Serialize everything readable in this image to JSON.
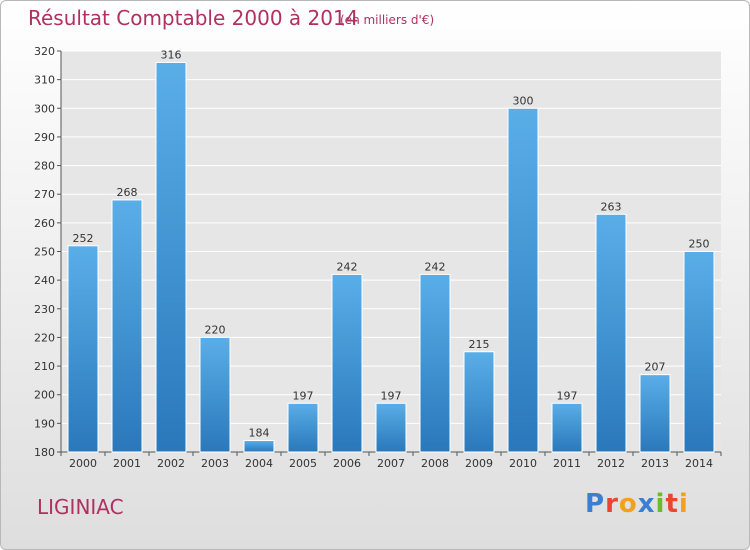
{
  "header": {
    "title": "Résultat Comptable 2000 à 2014",
    "subtitle": "(en milliers d'€)"
  },
  "footer": {
    "commune": "LIGINIAC",
    "logo_text": "Proxiti"
  },
  "colors": {
    "bar_top": "#5aaee8",
    "bar_bottom": "#2a78bb",
    "title": "#b03060",
    "grid": "#ffffff",
    "plot_bg": "#e6e6e6"
  },
  "chart_data": {
    "type": "bar",
    "categories": [
      "2000",
      "2001",
      "2002",
      "2003",
      "2004",
      "2005",
      "2006",
      "2007",
      "2008",
      "2009",
      "2010",
      "2011",
      "2012",
      "2013",
      "2014"
    ],
    "values": [
      252,
      268,
      316,
      220,
      184,
      197,
      242,
      197,
      242,
      215,
      300,
      197,
      263,
      207,
      250
    ],
    "ylim": [
      180,
      320
    ],
    "yticks": [
      180,
      190,
      200,
      210,
      220,
      230,
      240,
      250,
      260,
      270,
      280,
      290,
      300,
      310,
      320
    ],
    "grid": true,
    "data_labels": true
  }
}
